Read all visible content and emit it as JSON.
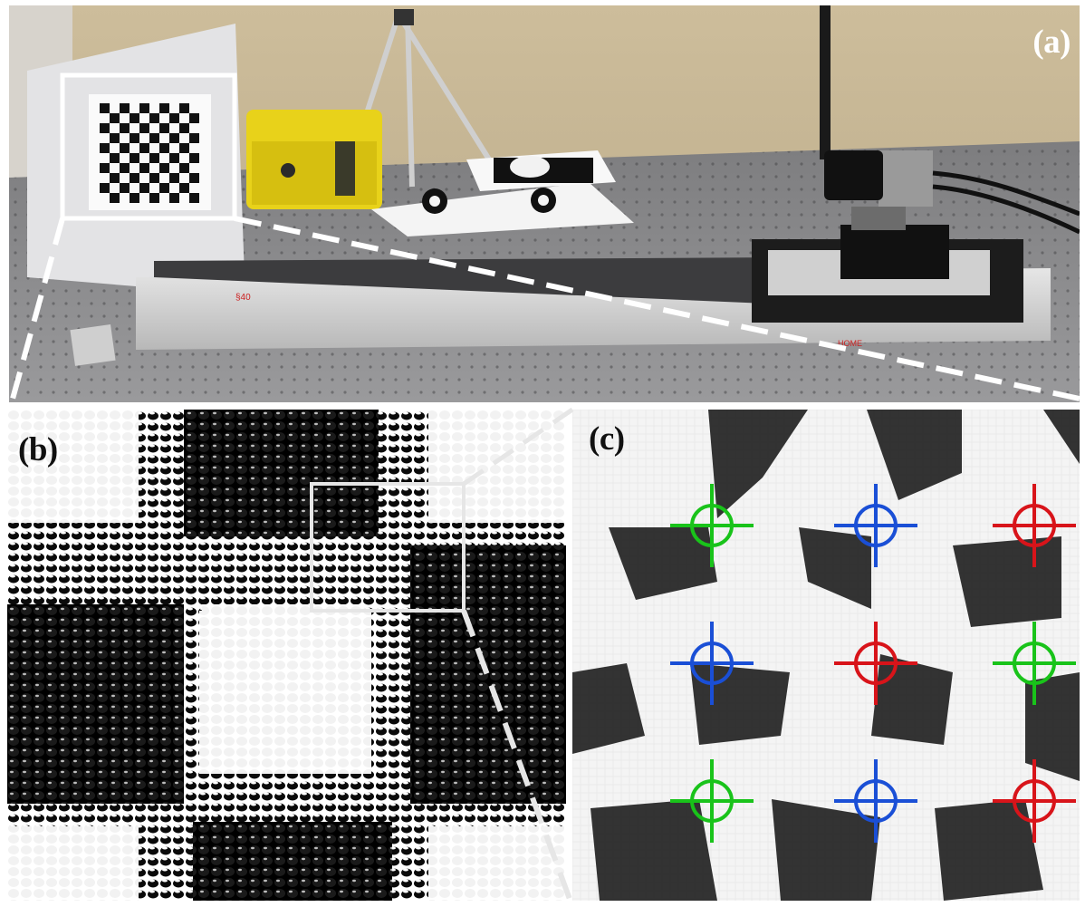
{
  "figure": {
    "panels": [
      {
        "id": "a",
        "label": "(a)",
        "content": "photo-of-calibration-setup"
      },
      {
        "id": "b",
        "label": "(b)",
        "content": "microlens-image-of-checkerboard"
      },
      {
        "id": "c",
        "label": "(c)",
        "content": "zoomed-corner-detection"
      }
    ],
    "photo_text": {
      "rail_mark": "§40",
      "home_mark": "HOME"
    },
    "markers": {
      "colors": {
        "green": "#19c31a",
        "blue": "#1a4fd6",
        "red": "#d8141a"
      },
      "points": [
        {
          "color": "green",
          "col": 0,
          "row": 0
        },
        {
          "color": "blue",
          "col": 1,
          "row": 0
        },
        {
          "color": "red",
          "col": 2,
          "row": 0
        },
        {
          "color": "blue",
          "col": 0,
          "row": 1
        },
        {
          "color": "red",
          "col": 1,
          "row": 1
        },
        {
          "color": "green",
          "col": 2,
          "row": 1
        },
        {
          "color": "green",
          "col": 0,
          "row": 2
        },
        {
          "color": "blue",
          "col": 1,
          "row": 2
        },
        {
          "color": "red",
          "col": 2,
          "row": 2
        }
      ]
    },
    "zoom_link_color": "#ffffff",
    "zoom_box_color": "#e8e8e8"
  }
}
